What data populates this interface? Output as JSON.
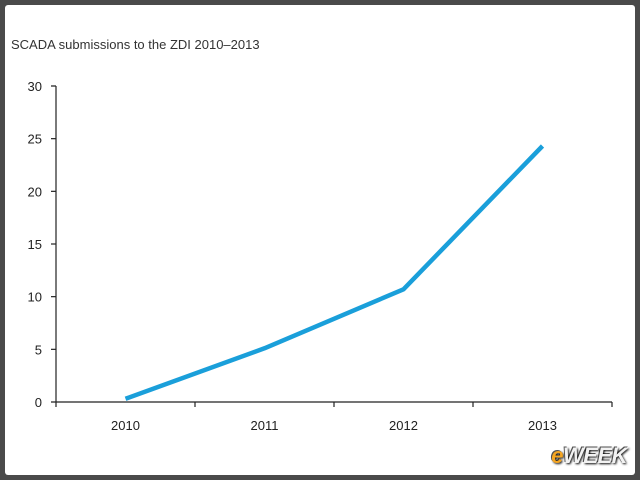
{
  "slide": {
    "brand_logo": "eWEEK",
    "brand_color": "#f5a623"
  },
  "chart_data": {
    "type": "line",
    "title": "SCADA submissions to the ZDI 2010–2013",
    "xlabel": "",
    "ylabel": "",
    "categories": [
      "2010",
      "2011",
      "2012",
      "2013"
    ],
    "series": [
      {
        "values": [
          0.3,
          5.1,
          10.7,
          24.3
        ],
        "color": "#1a9fda"
      }
    ],
    "ylim": [
      0,
      30
    ],
    "yticks": [
      0,
      5,
      10,
      15,
      20,
      25,
      30
    ],
    "grid": false,
    "legend": "none"
  }
}
